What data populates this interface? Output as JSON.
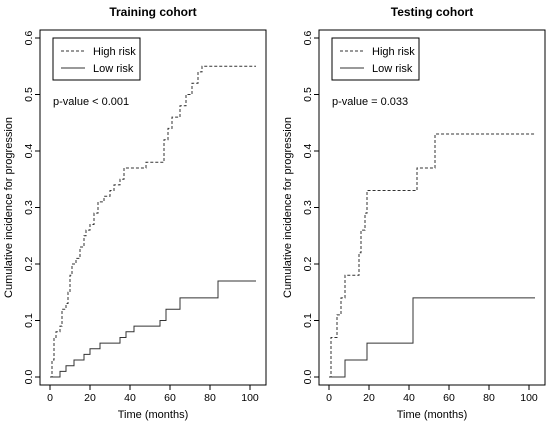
{
  "chart_data": [
    {
      "type": "line",
      "subtype": "step",
      "title": "Training cohort",
      "xlabel": "Time (months)",
      "ylabel": "Cumulative incidence for progression",
      "xlim": [
        0,
        103
      ],
      "ylim": [
        0,
        0.6
      ],
      "xticks": [
        "0",
        "20",
        "40",
        "60",
        "80",
        "100"
      ],
      "yticks": [
        "0.0",
        "0.1",
        "0.2",
        "0.3",
        "0.4",
        "0.5",
        "0.6"
      ],
      "annotation": "p-value < 0.001",
      "legend_position": "top-left",
      "series": [
        {
          "name": "High risk",
          "line_style": "dashed",
          "x": [
            0,
            1,
            2,
            3,
            5,
            6,
            8,
            9,
            10,
            11,
            13,
            15,
            17,
            18,
            20,
            22,
            24,
            27,
            30,
            32,
            35,
            37,
            40,
            45,
            48,
            55,
            57,
            59,
            61,
            65,
            68,
            71,
            74,
            76,
            103
          ],
          "y": [
            0,
            0.03,
            0.07,
            0.08,
            0.09,
            0.12,
            0.13,
            0.15,
            0.18,
            0.2,
            0.21,
            0.23,
            0.25,
            0.26,
            0.27,
            0.29,
            0.31,
            0.32,
            0.33,
            0.34,
            0.35,
            0.37,
            0.37,
            0.37,
            0.38,
            0.38,
            0.42,
            0.44,
            0.46,
            0.48,
            0.5,
            0.52,
            0.54,
            0.55,
            0.55
          ]
        },
        {
          "name": "Low risk",
          "line_style": "solid",
          "x": [
            0,
            5,
            8,
            12,
            17,
            20,
            25,
            30,
            35,
            38,
            42,
            50,
            55,
            58,
            65,
            84,
            103
          ],
          "y": [
            0,
            0.01,
            0.02,
            0.03,
            0.04,
            0.05,
            0.06,
            0.06,
            0.07,
            0.08,
            0.09,
            0.09,
            0.1,
            0.12,
            0.14,
            0.17,
            0.17
          ]
        }
      ]
    },
    {
      "type": "line",
      "subtype": "step",
      "title": "Testing cohort",
      "xlabel": "Time (months)",
      "ylabel": "Cumulative incidence for progression",
      "xlim": [
        0,
        103
      ],
      "ylim": [
        0,
        0.6
      ],
      "xticks": [
        "0",
        "20",
        "40",
        "60",
        "80",
        "100"
      ],
      "yticks": [
        "0.0",
        "0.1",
        "0.2",
        "0.3",
        "0.4",
        "0.5",
        "0.6"
      ],
      "annotation": "p-value = 0.033",
      "legend_position": "top-left",
      "series": [
        {
          "name": "High risk",
          "line_style": "dashed",
          "x": [
            0,
            1,
            4,
            6,
            8,
            15,
            16,
            18,
            19,
            29,
            44,
            53,
            103
          ],
          "y": [
            0,
            0.07,
            0.11,
            0.14,
            0.18,
            0.22,
            0.26,
            0.29,
            0.33,
            0.33,
            0.37,
            0.43,
            0.43
          ]
        },
        {
          "name": "Low risk",
          "line_style": "solid",
          "x": [
            0,
            8,
            19,
            42,
            103
          ],
          "y": [
            0,
            0.03,
            0.06,
            0.14,
            0.14
          ]
        }
      ]
    }
  ]
}
